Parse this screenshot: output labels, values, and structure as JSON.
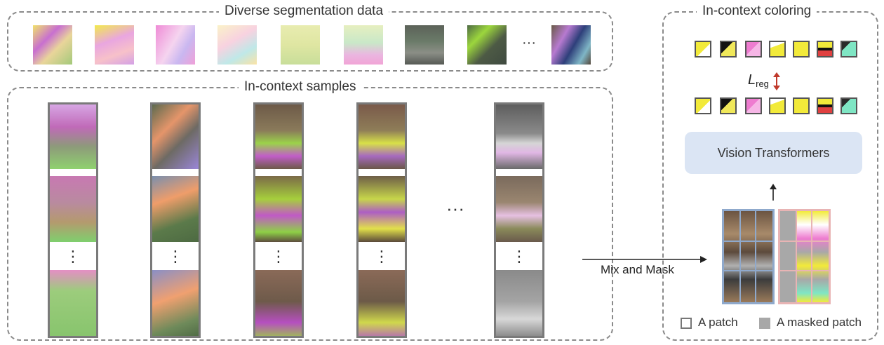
{
  "top_box": {
    "title": "Diverse segmentation data",
    "ellipsis": "···"
  },
  "samples_box": {
    "title": "In-context samples",
    "ellipsis": "···",
    "vdots": "⋮"
  },
  "coloring_box": {
    "title": "In-context coloring"
  },
  "loss": {
    "symbol": "L",
    "subscript": "reg"
  },
  "model": {
    "label": "Vision Transformers"
  },
  "arrow_label": "Mix and Mask",
  "legend": {
    "patch": "A patch",
    "masked": "A masked patch"
  },
  "colors": {
    "accent_red": "#c0392b",
    "vit_fill": "#dbe5f4",
    "mask_gray": "#a8a8a8",
    "left_panel_border": "#8fa9cc",
    "right_panel_border": "#e8b4b4"
  }
}
